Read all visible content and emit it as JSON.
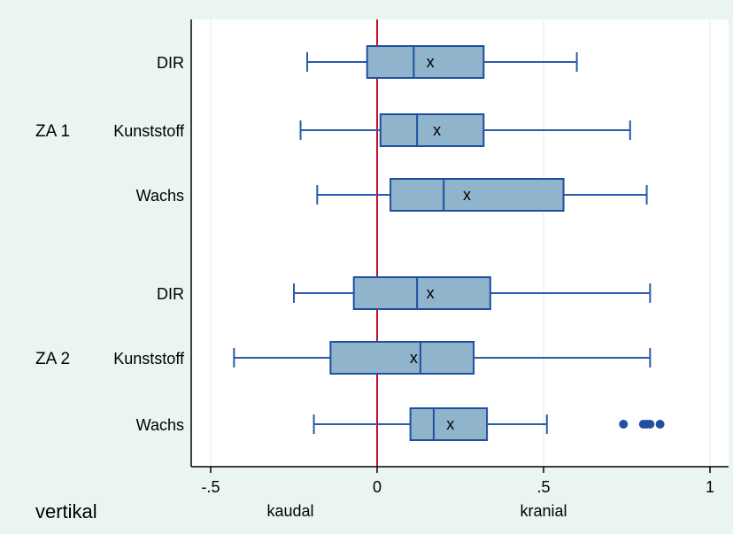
{
  "chart_data": {
    "type": "box",
    "orientation": "horizontal",
    "axis_title": "vertikal",
    "direction_labels": {
      "negative": "kaudal",
      "positive": "kranial"
    },
    "xlim": [
      -0.5,
      1.05
    ],
    "xticks": [
      {
        "value": -0.5,
        "label": "-.5"
      },
      {
        "value": 0,
        "label": "0"
      },
      {
        "value": 0.5,
        "label": ".5"
      },
      {
        "value": 1,
        "label": "1"
      }
    ],
    "reference_line": 0,
    "grid": true,
    "groups": [
      {
        "label": "ZA 1",
        "items": [
          {
            "label": "DIR",
            "whisker_low": -0.21,
            "q1": -0.03,
            "median": 0.11,
            "q3": 0.32,
            "whisker_high": 0.6,
            "mean": 0.16,
            "outliers": []
          },
          {
            "label": "Kunststoff",
            "whisker_low": -0.23,
            "q1": 0.01,
            "median": 0.12,
            "q3": 0.32,
            "whisker_high": 0.76,
            "mean": 0.18,
            "outliers": []
          },
          {
            "label": "Wachs",
            "whisker_low": -0.18,
            "q1": 0.04,
            "median": 0.2,
            "q3": 0.56,
            "whisker_high": 0.81,
            "mean": 0.27,
            "outliers": []
          }
        ]
      },
      {
        "label": "ZA 2",
        "items": [
          {
            "label": "DIR",
            "whisker_low": -0.25,
            "q1": -0.07,
            "median": 0.12,
            "q3": 0.34,
            "whisker_high": 0.82,
            "mean": 0.16,
            "outliers": []
          },
          {
            "label": "Kunststoff",
            "whisker_low": -0.43,
            "q1": -0.14,
            "median": 0.13,
            "q3": 0.29,
            "whisker_high": 0.82,
            "mean": 0.11,
            "outliers": []
          },
          {
            "label": "Wachs",
            "whisker_low": -0.19,
            "q1": 0.1,
            "median": 0.17,
            "q3": 0.33,
            "whisker_high": 0.51,
            "mean": 0.22,
            "outliers": [
              0.74,
              0.8,
              0.81,
              0.82,
              0.85
            ]
          }
        ]
      }
    ],
    "mean_marker": "x",
    "colors": {
      "outer_background": "#eaf5f3",
      "plot_background": "#ffffff",
      "box_fill": "#8fb4cc",
      "box_stroke": "#1f4fa0",
      "whisker": "#2b5cab",
      "outlier": "#1f4fa0",
      "reference_line": "#c8102e",
      "grid": "#e2ecec"
    }
  }
}
